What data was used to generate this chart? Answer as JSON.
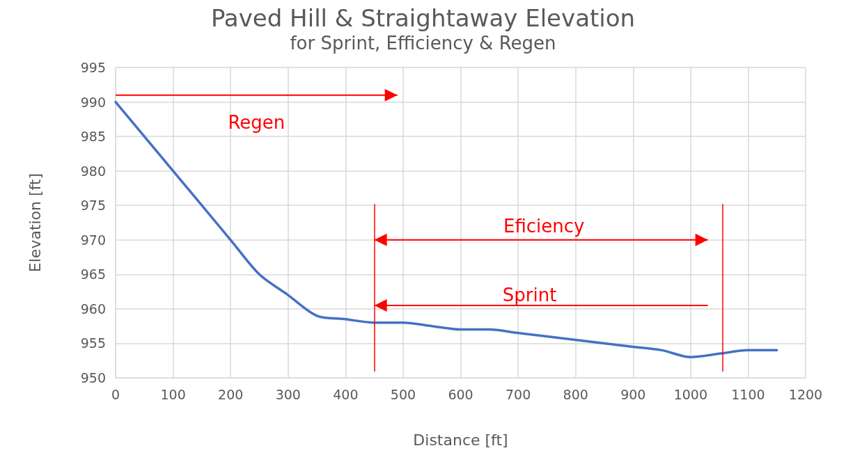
{
  "chart_data": {
    "type": "line",
    "title": "Paved Hill & Straightaway Elevation",
    "subtitle": "for Sprint, Efficiency & Regen",
    "xlabel": "Distance [ft]",
    "ylabel": "Elevation [ft]",
    "x": [
      0,
      50,
      100,
      150,
      200,
      250,
      300,
      350,
      400,
      450,
      500,
      550,
      600,
      650,
      700,
      750,
      800,
      850,
      900,
      950,
      1000,
      1050,
      1100,
      1150
    ],
    "series": [
      {
        "color": "#4472c4",
        "values": [
          990,
          985,
          980,
          975,
          970,
          965,
          962,
          959,
          958.5,
          958,
          958,
          957.5,
          957,
          957,
          956.5,
          956,
          955.5,
          955,
          954.5,
          954,
          953,
          953.5,
          954,
          954
        ]
      }
    ],
    "xlim": [
      0,
      1200
    ],
    "xticks": [
      0,
      100,
      200,
      300,
      400,
      500,
      600,
      700,
      800,
      900,
      1000,
      1100,
      1200
    ],
    "ylim": [
      950,
      995
    ],
    "yticks": [
      950,
      955,
      960,
      965,
      970,
      975,
      980,
      985,
      990,
      995
    ],
    "grid": true,
    "marker": "none",
    "line_style": "solid",
    "ref_lines": [
      {
        "axis": "x",
        "value": 450,
        "color": "#ff0000"
      },
      {
        "axis": "x",
        "value": 1055,
        "color": "#ff0000"
      }
    ],
    "annotations": [
      "Regen",
      "Eficiency",
      "Sprint"
    ]
  }
}
